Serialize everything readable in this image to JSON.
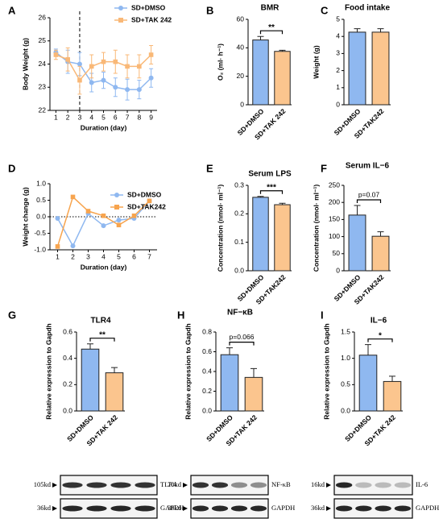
{
  "chart_data": [
    {
      "type": "line",
      "panel": "A",
      "x_label": "Duration (day)",
      "y_label": "Body Weight (g)",
      "x": [
        1,
        2,
        3,
        4,
        5,
        6,
        7,
        8,
        9
      ],
      "xlim": [
        0.5,
        9.5
      ],
      "xticks": [
        1,
        2,
        3,
        4,
        5,
        6,
        7,
        8,
        9
      ],
      "ylim": [
        22,
        26
      ],
      "yticks": [
        22,
        23,
        24,
        25,
        26
      ],
      "vline": 3,
      "legend": "upper right",
      "series": [
        {
          "name": "SD+DMSO",
          "color": "#8fb8f0",
          "marker": "circle",
          "values": [
            24.5,
            24.1,
            24.0,
            23.2,
            23.3,
            23.0,
            22.9,
            22.9,
            23.4
          ],
          "errors": [
            0.15,
            0.5,
            0.5,
            0.4,
            0.35,
            0.4,
            0.45,
            0.4,
            0.4
          ]
        },
        {
          "name": "SD+TAK 242",
          "color": "#f9b877",
          "marker": "square",
          "values": [
            24.4,
            24.2,
            23.3,
            23.9,
            24.1,
            24.1,
            23.9,
            23.9,
            24.4
          ],
          "errors": [
            0.2,
            0.5,
            0.6,
            0.5,
            0.4,
            0.5,
            0.5,
            0.5,
            0.4
          ]
        }
      ]
    },
    {
      "type": "bar",
      "panel": "B",
      "title": "BMR",
      "y_label": "O₂ (ml· h⁻¹)",
      "categories": [
        "SD+DMSO",
        "SD+TAK 242"
      ],
      "values": [
        45.5,
        37.5
      ],
      "errors": [
        2.5,
        0.8
      ],
      "colors": [
        "#8fb8f0",
        "#fbc58e"
      ],
      "ylim": [
        0,
        60
      ],
      "yticks": [
        0,
        20,
        40,
        60
      ],
      "sig": "**"
    },
    {
      "type": "bar",
      "panel": "C",
      "title": "Food intake",
      "y_label": "Weight (g)",
      "categories": [
        "SD+DMSO",
        "SD+TAK242"
      ],
      "values": [
        4.25,
        4.25
      ],
      "errors": [
        0.2,
        0.2
      ],
      "colors": [
        "#8fb8f0",
        "#fbc58e"
      ],
      "ylim": [
        0,
        5
      ],
      "yticks": [
        0,
        1,
        2,
        3,
        4,
        5
      ]
    },
    {
      "type": "line",
      "panel": "D",
      "x_label": "Duration (day)",
      "y_label": "Weight change (g)",
      "x": [
        1,
        2,
        3,
        4,
        5,
        6,
        7
      ],
      "xlim": [
        0.5,
        7.5
      ],
      "xticks": [
        1,
        2,
        3,
        4,
        5,
        6,
        7
      ],
      "ylim": [
        -1.0,
        1.0
      ],
      "yticks": [
        {
          "value": -1,
          "label": "-1.0"
        },
        {
          "value": -0.5,
          "label": "-0.5"
        },
        {
          "value": 0,
          "label": "0.0"
        },
        {
          "value": 0.5,
          "label": "0.5"
        },
        {
          "value": 1,
          "label": "1.0"
        }
      ],
      "hline": 0,
      "legend": "right",
      "series": [
        {
          "name": "SD+DMSO",
          "color": "#8fb8f0",
          "marker": "circle",
          "values": [
            -0.05,
            -0.88,
            0.1,
            -0.27,
            -0.1,
            -0.05,
            0.48
          ]
        },
        {
          "name": "SD+TAK242",
          "color": "#f7a44e",
          "marker": "square",
          "values": [
            -0.9,
            0.6,
            0.17,
            0.03,
            -0.25,
            0.03,
            0.48
          ]
        }
      ]
    },
    {
      "type": "bar",
      "panel": "E",
      "title": "Serum LPS",
      "y_label": "Concentration (nmol· ml⁻¹)",
      "categories": [
        "SD+DMSO",
        "SD+TAK242"
      ],
      "values": [
        0.258,
        0.232
      ],
      "errors": [
        0.003,
        0.005
      ],
      "colors": [
        "#8fb8f0",
        "#fbc58e"
      ],
      "ylim": [
        0,
        0.3
      ],
      "yticks": [
        {
          "value": 0,
          "label": "0.0"
        },
        0.1,
        0.2,
        0.3
      ],
      "sig": "***"
    },
    {
      "type": "bar",
      "panel": "F",
      "title": "Serum IL−6",
      "y_label": "Concentration (nmol· ml⁻¹)",
      "categories": [
        "SD+DMSO",
        "SD+TAK242"
      ],
      "values": [
        163,
        101
      ],
      "errors": [
        28,
        13
      ],
      "colors": [
        "#8fb8f0",
        "#fbc58e"
      ],
      "ylim": [
        0,
        250
      ],
      "yticks": [
        0,
        50,
        100,
        150,
        200,
        250
      ],
      "sig": "p=0.07"
    },
    {
      "type": "bar",
      "panel": "G",
      "title": "TLR4",
      "y_label": "Relative expression to Gapdh",
      "categories": [
        "SD+DMSO",
        "SD+TAK 242"
      ],
      "values": [
        0.47,
        0.29
      ],
      "errors": [
        0.04,
        0.04
      ],
      "colors": [
        "#8fb8f0",
        "#fbc58e"
      ],
      "ylim": [
        0,
        0.6
      ],
      "yticks": [
        {
          "value": 0,
          "label": "0.0"
        },
        0.2,
        0.4,
        0.6
      ],
      "sig": "**"
    },
    {
      "type": "bar",
      "panel": "H",
      "title": "NF−κB",
      "y_label": "Relative expression to Gapdh",
      "categories": [
        "SD+DMSO",
        "SD+TAK 242"
      ],
      "values": [
        0.57,
        0.34
      ],
      "errors": [
        0.07,
        0.09
      ],
      "colors": [
        "#8fb8f0",
        "#fbc58e"
      ],
      "ylim": [
        0,
        0.8
      ],
      "yticks": [
        {
          "value": 0,
          "label": "0.0"
        },
        0.2,
        0.4,
        0.6,
        0.8
      ],
      "sig": "p=0.066"
    },
    {
      "type": "bar",
      "panel": "I",
      "title": "IL−6",
      "y_label": "Relative expression to Gapdh",
      "categories": [
        "SD+DMSO",
        "SD+TAK 242"
      ],
      "values": [
        1.06,
        0.56
      ],
      "errors": [
        0.2,
        0.1
      ],
      "colors": [
        "#8fb8f0",
        "#fbc58e"
      ],
      "ylim": [
        0,
        1.5
      ],
      "yticks": [
        {
          "value": 0,
          "label": "0.0"
        },
        0.5,
        {
          "value": 1,
          "label": "1.0"
        },
        1.5
      ],
      "sig": "*"
    }
  ],
  "blots": [
    {
      "kd": "105kd",
      "protein": "TLR4",
      "ref_kd": "36kd",
      "ref": "GAPDH"
    },
    {
      "kd": "70kd",
      "protein": "NF-κB",
      "ref_kd": "36kd",
      "ref": "GAPDH"
    },
    {
      "kd": "16kd",
      "protein": "IL-6",
      "ref_kd": "36kd",
      "ref": "GAPDH"
    }
  ]
}
